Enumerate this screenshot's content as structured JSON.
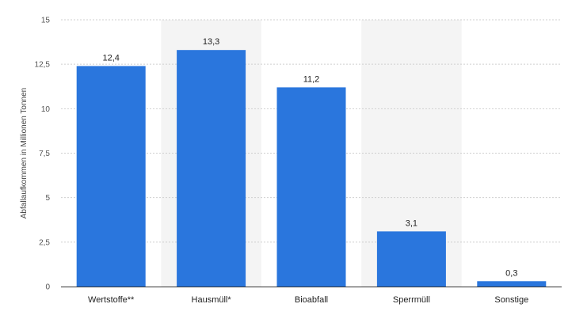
{
  "chart_data": {
    "type": "bar",
    "categories": [
      "Wertstoffe**",
      "Hausmüll*",
      "Bioabfall",
      "Sperrmüll",
      "Sonstige"
    ],
    "values": [
      12.4,
      13.3,
      11.2,
      3.1,
      0.3
    ],
    "data_labels": [
      "12,4",
      "13,3",
      "11,2",
      "3,1",
      "0,3"
    ],
    "ylabel": "Abfallaufkommen in Millionen Tonnen",
    "ylim": [
      0,
      15
    ],
    "yticks": [
      0,
      2.5,
      5,
      7.5,
      10,
      12.5,
      15
    ],
    "ytick_labels": [
      "0",
      "2,5",
      "5",
      "7,5",
      "10",
      "12,5",
      "15"
    ],
    "grid": true,
    "bar_color": "#2a76dd"
  }
}
